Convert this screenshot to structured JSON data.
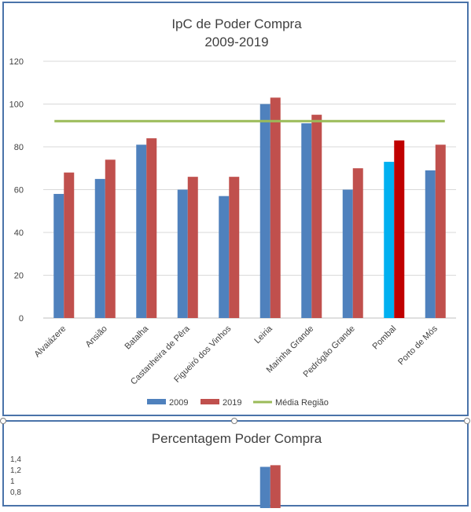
{
  "chart_data": [
    {
      "type": "bar",
      "title": "IpC de Poder Compra",
      "subtitle": "2009-2019",
      "xlabel": "",
      "ylabel": "",
      "ylim": [
        0,
        120
      ],
      "yticks": [
        0,
        20,
        40,
        60,
        80,
        100,
        120
      ],
      "grid": true,
      "legend_position": "bottom",
      "categories": [
        "Alvaiázere",
        "Ansião",
        "Batalha",
        "Castanheira de Pêra",
        "Figueiró dos Vinhos",
        "Leiria",
        "Marinha Grande",
        "Pedrógão Grande",
        "Pombal",
        "Porto de Mós"
      ],
      "series": [
        {
          "name": "2009",
          "type": "bar",
          "color": "#4f81bd",
          "values": [
            58,
            65,
            81,
            60,
            57,
            100,
            91,
            60,
            73,
            69
          ],
          "highlight": {
            "index": 8,
            "color": "#00b0f0"
          }
        },
        {
          "name": "2019",
          "type": "bar",
          "color": "#c0504d",
          "values": [
            68,
            74,
            84,
            66,
            66,
            103,
            95,
            70,
            83,
            81
          ],
          "highlight": {
            "index": 8,
            "color": "#c00000"
          }
        },
        {
          "name": "Média Região",
          "type": "line",
          "color": "#9bbb59",
          "value": 92
        }
      ]
    },
    {
      "type": "bar",
      "title": "Percentagem Poder Compra",
      "ylim": [
        0.8,
        1.4
      ],
      "yticks": [
        "1,4",
        "1,2",
        "1",
        "0,8"
      ],
      "partial": true,
      "visible_bars": [
        {
          "category_index": 5,
          "color": "#4f81bd",
          "value": 1.25
        },
        {
          "category_index": 5,
          "color": "#c0504d",
          "value": 1.28
        }
      ]
    }
  ]
}
